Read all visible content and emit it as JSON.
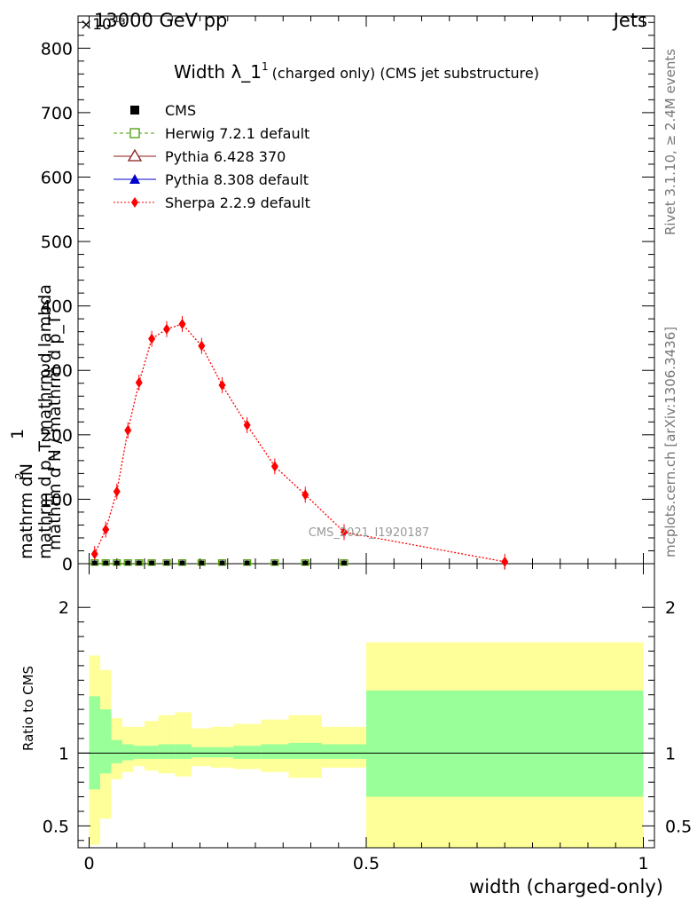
{
  "header": {
    "left": "13000 GeV pp",
    "right": "Jets",
    "exponent": "×10⁻³"
  },
  "side_labels": {
    "rivet": "Rivet 3.1.10, ≥ 2.4M events",
    "mcplots": "mcplots.cern.ch [arXiv:1306.3436]"
  },
  "watermark": "CMS_2021_I1920187",
  "colors": {
    "cms": "#000000",
    "herwig": "#4c9a00",
    "pythia6": "#8b1a1a",
    "pythia8": "#0000cc",
    "sherpa": "#ff0000",
    "band_outer": "#ffff99",
    "band_inner": "#99ff99"
  },
  "chart_data": [
    {
      "type": "line",
      "title": "Width λ_1¹ (charged only) (CMS jet substructure)",
      "title_main": "Width λ_1",
      "title_sup": "1",
      "title_sub": "(charged only) (CMS jet substructure)",
      "ylabel": {
        "num": "mathrm dN",
        "num_sup": "2",
        "den": "mathrm d p_T mathrm d lambda",
        "pre_one": "1",
        "pre_den": "mathrm d N / mathrm d p_T"
      },
      "ylim": [
        0,
        850
      ],
      "xlim": [
        -0.02,
        1.02
      ],
      "yticks": [
        0,
        100,
        200,
        300,
        400,
        500,
        600,
        700,
        800
      ],
      "ytick_labels": [
        "0",
        "100",
        "200",
        "300",
        "400",
        "500",
        "600",
        "700",
        "800"
      ],
      "legend_position": "top-left",
      "legend": [
        {
          "key": "cms",
          "label": "CMS"
        },
        {
          "key": "herwig",
          "label": "Herwig 7.2.1 default"
        },
        {
          "key": "pythia6",
          "label": "Pythia 6.428 370"
        },
        {
          "key": "pythia8",
          "label": "Pythia 8.308 default"
        },
        {
          "key": "sherpa",
          "label": "Sherpa 2.2.9 default"
        }
      ],
      "series": [
        {
          "name": "Sherpa 2.2.9 default",
          "x": [
            0.01,
            0.03,
            0.05,
            0.07,
            0.09,
            0.113,
            0.14,
            0.168,
            0.203,
            0.24,
            0.285,
            0.335,
            0.39,
            0.46,
            0.75
          ],
          "y": [
            15,
            53,
            112,
            207,
            281,
            349,
            364,
            372,
            338,
            277,
            215,
            151,
            107,
            49,
            3
          ]
        },
        {
          "name": "CMS",
          "x": [
            0.01,
            0.03,
            0.05,
            0.07,
            0.09,
            0.113,
            0.14,
            0.168,
            0.203,
            0.24,
            0.285,
            0.335,
            0.39,
            0.46
          ],
          "y": [
            0.4,
            0.4,
            0.4,
            0.4,
            0.4,
            0.4,
            0.4,
            0.4,
            0.4,
            0.4,
            0.4,
            0.4,
            0.4,
            0.4
          ]
        }
      ]
    },
    {
      "type": "area",
      "ylabel": "Ratio to CMS",
      "xlabel": "width (charged-only)",
      "ylim": [
        0.35,
        2.3
      ],
      "xlim": [
        -0.02,
        1.02
      ],
      "yticks": [
        0.5,
        1,
        2
      ],
      "ytick_labels": [
        "0.5",
        "1",
        "2"
      ],
      "xticks": [
        0,
        0.5,
        1
      ],
      "xtick_labels": [
        "0",
        "0.5",
        "1"
      ],
      "bins": [
        {
          "lo": 0.0,
          "hi": 0.02,
          "outer": [
            0.37,
            1.67
          ],
          "inner": [
            0.75,
            1.39
          ]
        },
        {
          "lo": 0.02,
          "hi": 0.04,
          "outer": [
            0.55,
            1.57
          ],
          "inner": [
            0.86,
            1.3
          ]
        },
        {
          "lo": 0.04,
          "hi": 0.06,
          "outer": [
            0.82,
            1.24
          ],
          "inner": [
            0.93,
            1.09
          ]
        },
        {
          "lo": 0.06,
          "hi": 0.08,
          "outer": [
            0.87,
            1.18
          ],
          "inner": [
            0.95,
            1.06
          ]
        },
        {
          "lo": 0.08,
          "hi": 0.1,
          "outer": [
            0.91,
            1.18
          ],
          "inner": [
            0.96,
            1.05
          ]
        },
        {
          "lo": 0.1,
          "hi": 0.125,
          "outer": [
            0.88,
            1.22
          ],
          "inner": [
            0.96,
            1.05
          ]
        },
        {
          "lo": 0.125,
          "hi": 0.155,
          "outer": [
            0.86,
            1.26
          ],
          "inner": [
            0.96,
            1.06
          ]
        },
        {
          "lo": 0.155,
          "hi": 0.185,
          "outer": [
            0.84,
            1.28
          ],
          "inner": [
            0.96,
            1.06
          ]
        },
        {
          "lo": 0.185,
          "hi": 0.22,
          "outer": [
            0.91,
            1.17
          ],
          "inner": [
            0.97,
            1.04
          ]
        },
        {
          "lo": 0.22,
          "hi": 0.26,
          "outer": [
            0.9,
            1.18
          ],
          "inner": [
            0.97,
            1.04
          ]
        },
        {
          "lo": 0.26,
          "hi": 0.31,
          "outer": [
            0.89,
            1.2
          ],
          "inner": [
            0.96,
            1.05
          ]
        },
        {
          "lo": 0.31,
          "hi": 0.36,
          "outer": [
            0.87,
            1.23
          ],
          "inner": [
            0.96,
            1.06
          ]
        },
        {
          "lo": 0.36,
          "hi": 0.42,
          "outer": [
            0.83,
            1.26
          ],
          "inner": [
            0.96,
            1.07
          ]
        },
        {
          "lo": 0.42,
          "hi": 0.5,
          "outer": [
            0.9,
            1.18
          ],
          "inner": [
            0.96,
            1.06
          ]
        },
        {
          "lo": 0.5,
          "hi": 1.0,
          "outer": [
            0.35,
            1.76
          ],
          "inner": [
            0.7,
            1.43
          ]
        }
      ]
    }
  ]
}
